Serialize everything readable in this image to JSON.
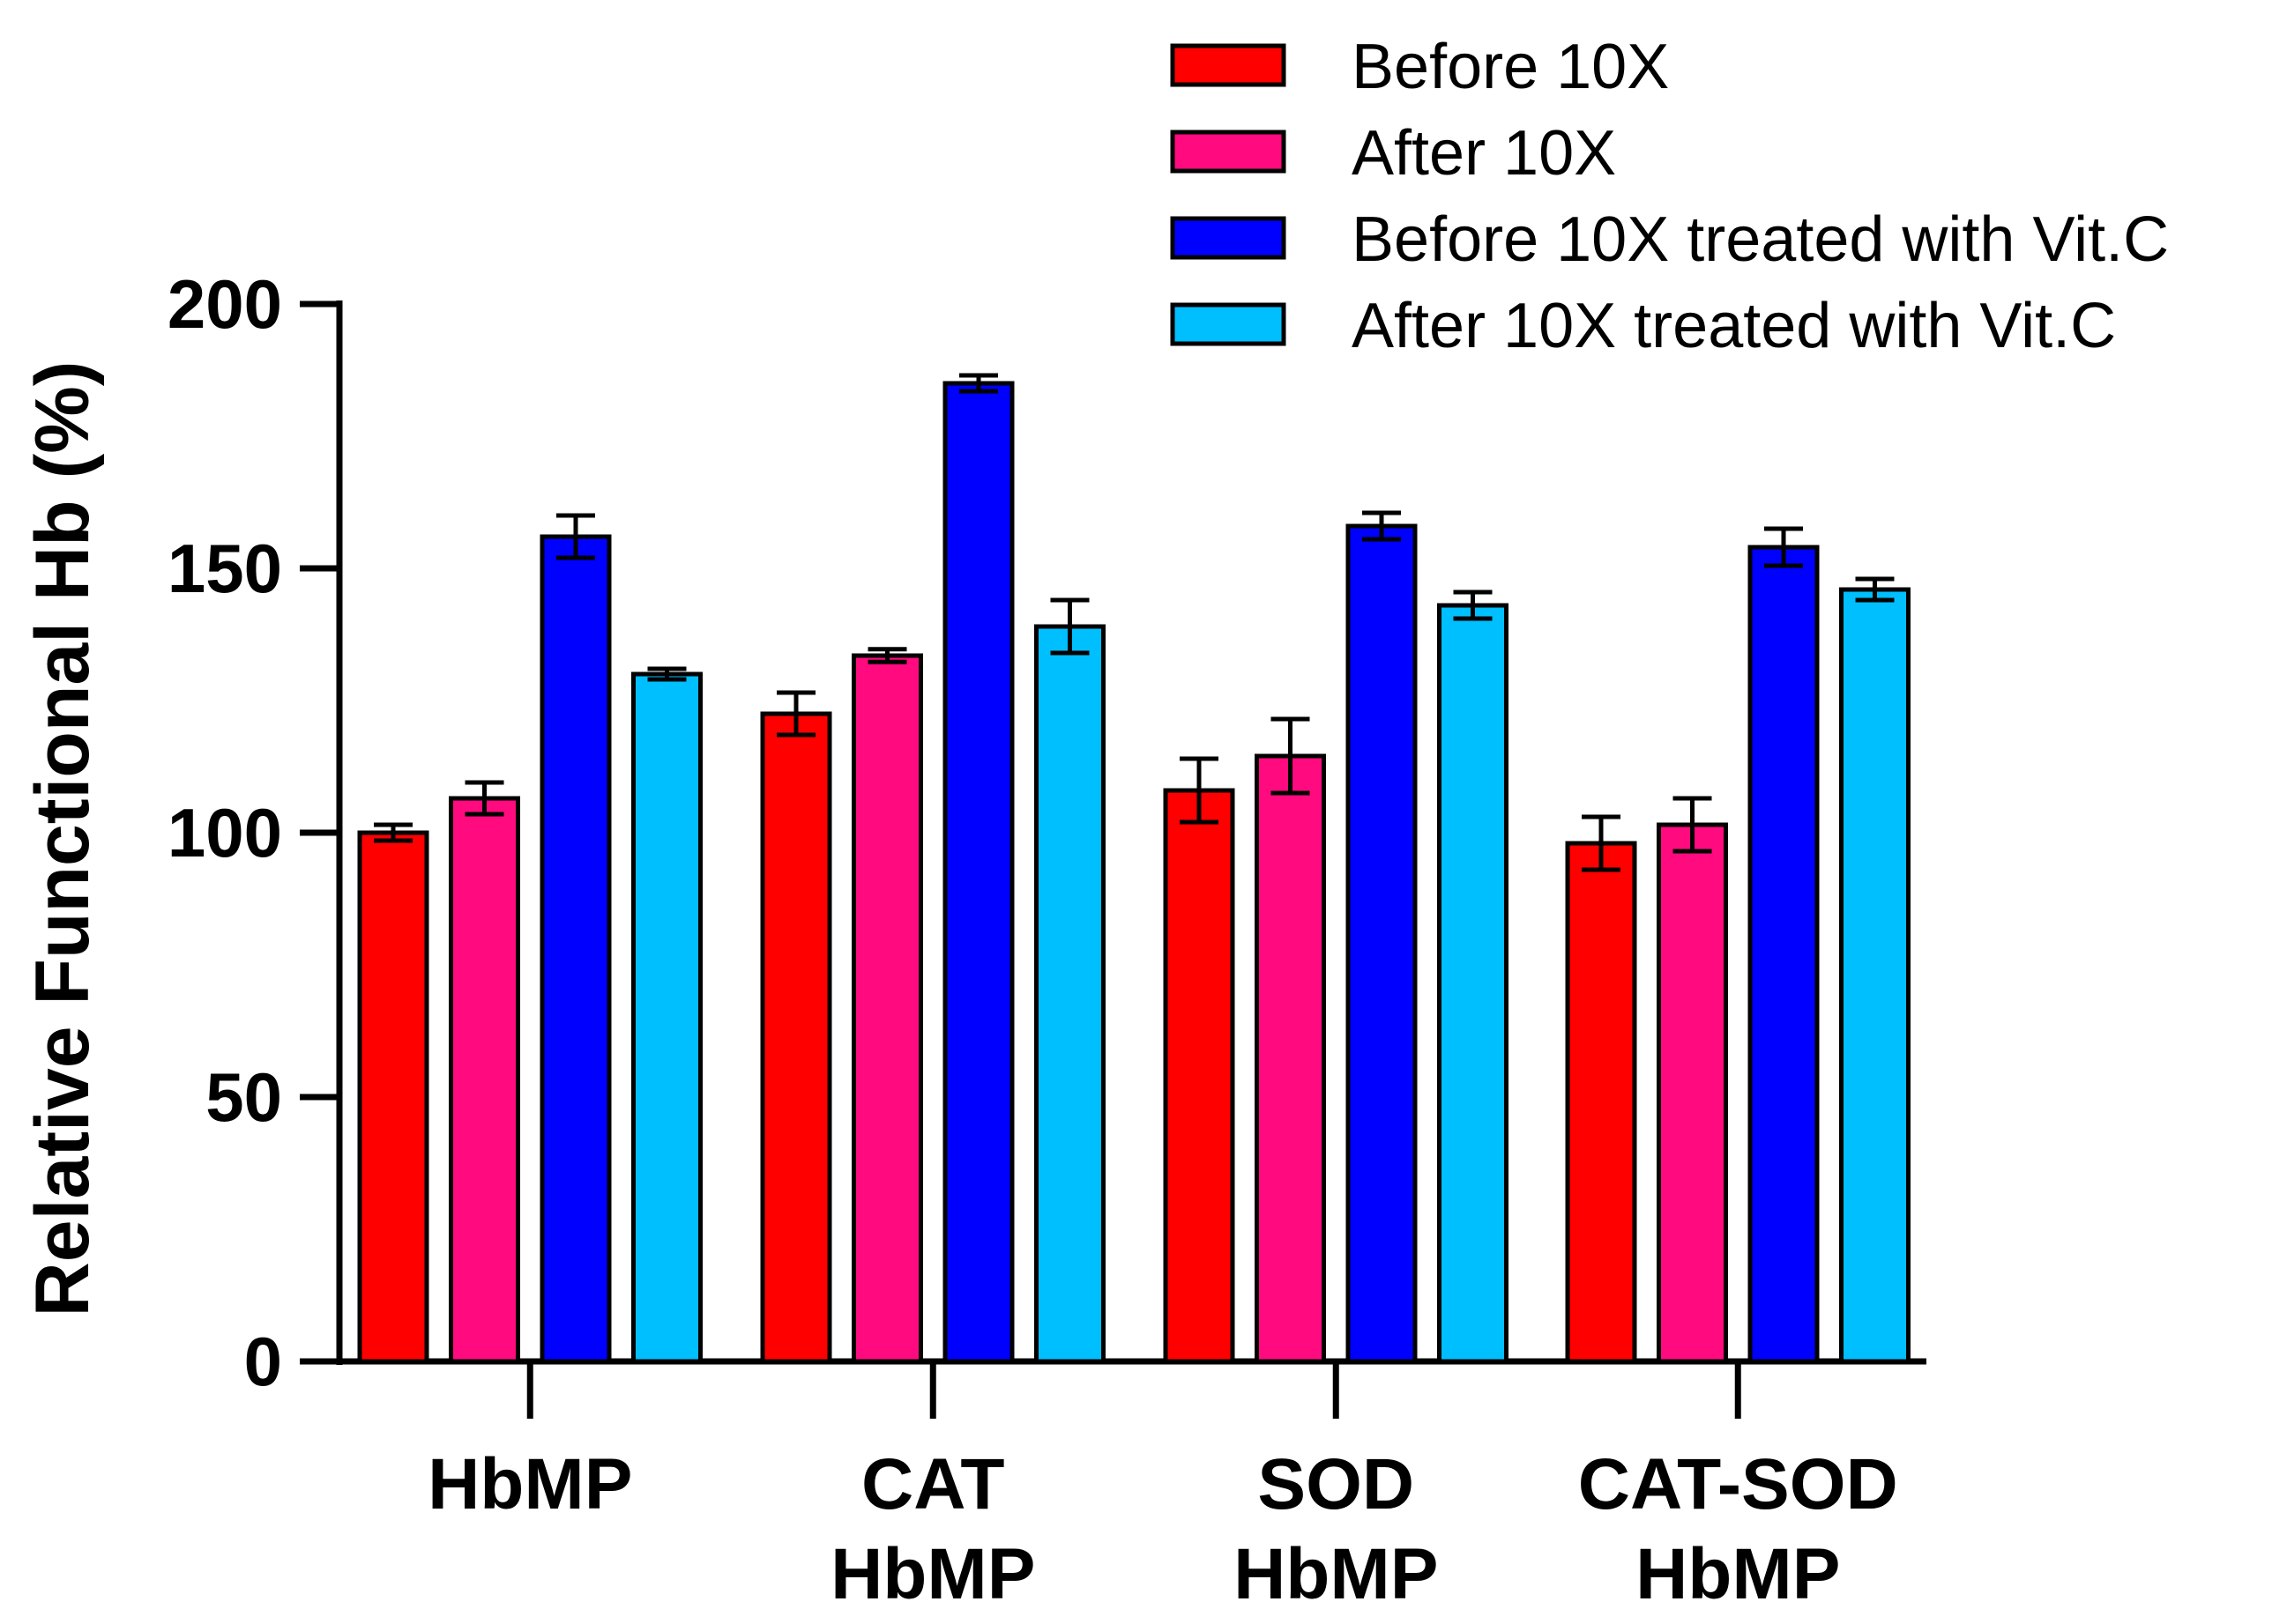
{
  "chart_data": {
    "type": "bar",
    "ylabel": "Relative Functional Hb (%)",
    "xlabel": "",
    "ylim": [
      0,
      200
    ],
    "yticks": [
      0,
      50,
      100,
      150,
      200
    ],
    "grid": false,
    "legend_position": "top-right",
    "categories": [
      [
        "HbMP"
      ],
      [
        "CAT",
        "HbMP"
      ],
      [
        "SOD",
        "HbMP"
      ],
      [
        "CAT-SOD",
        "HbMP"
      ]
    ],
    "series": [
      {
        "name": "Before 10X",
        "color": "#ff0000",
        "values": [
          100,
          122.5,
          108,
          98
        ],
        "errors": [
          1.5,
          4,
          6,
          5
        ]
      },
      {
        "name": "After 10X",
        "color": "#ff0a7f",
        "values": [
          106.5,
          133.5,
          114.5,
          101.5
        ],
        "errors": [
          3,
          1.2,
          7,
          5
        ]
      },
      {
        "name": "Before 10X treated with Vit.C",
        "color": "#0000ff",
        "values": [
          156,
          185,
          158,
          154
        ],
        "errors": [
          4,
          1.5,
          2.5,
          3.5
        ]
      },
      {
        "name": "After 10X treated with Vit.C",
        "color": "#00bfff",
        "values": [
          130,
          139,
          143,
          146
        ],
        "errors": [
          1,
          5,
          2.5,
          2
        ]
      }
    ]
  }
}
